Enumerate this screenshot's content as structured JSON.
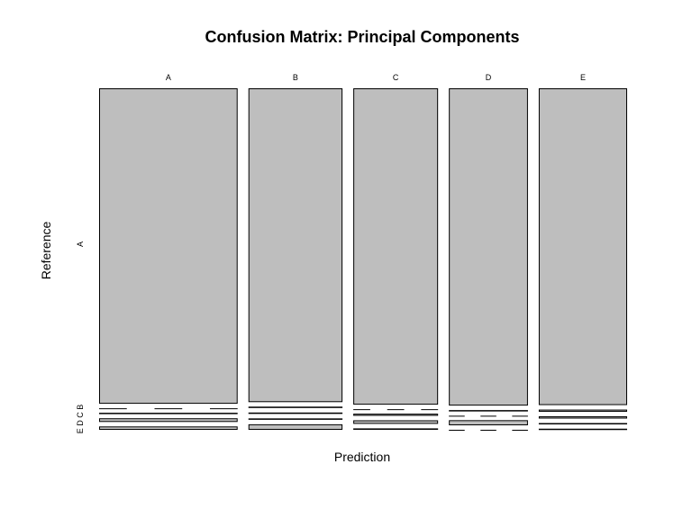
{
  "chart_data": {
    "type": "mosaic",
    "title": "Confusion Matrix: Principal Components",
    "xlabel": "Prediction",
    "ylabel": "Reference",
    "column_labels": [
      "A",
      "B",
      "C",
      "D",
      "E"
    ],
    "row_labels": [
      "A",
      "E",
      "D",
      "C",
      "B"
    ],
    "row_label_text": {
      "main": "A",
      "stacked": "E D C B"
    },
    "fill_color": "#bebebe",
    "stroke_color": "#000000",
    "column_widths": [
      0.268,
      0.182,
      0.164,
      0.153,
      0.171
    ],
    "proportions": {
      "A": {
        "A": 0.944,
        "B": 0.01,
        "C": 0.011,
        "D": 0.003,
        "E": 0.0
      },
      "B": {
        "A": 0.911,
        "B": 0.016,
        "C": 0.004,
        "D": 0.004,
        "E": 0.004
      },
      "C": {
        "A": 0.89,
        "B": 0.004,
        "C": 0.01,
        "D": 0.006,
        "E": 0.0
      },
      "D": {
        "A": 0.872,
        "B": 0.0,
        "C": 0.014,
        "D": 0.0,
        "E": 0.003
      },
      "E": {
        "A": 0.85,
        "B": 0.003,
        "C": 0.003,
        "D": 0.006,
        "E": 0.006
      }
    }
  }
}
